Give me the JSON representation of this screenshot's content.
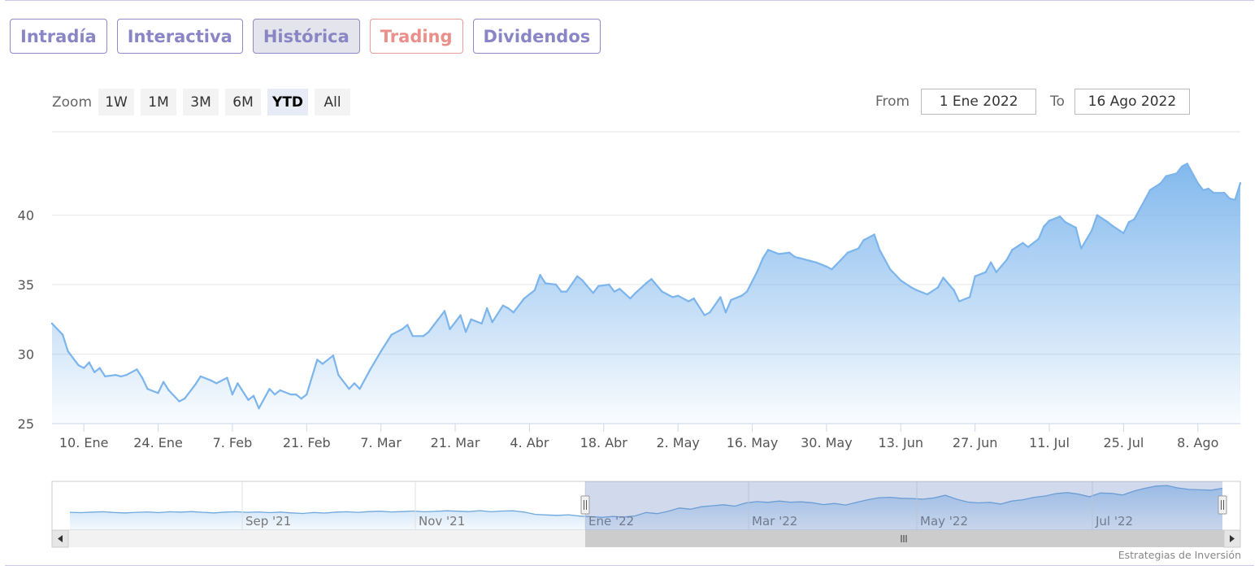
{
  "tabs": [
    {
      "label": "Intradía"
    },
    {
      "label": "Interactiva"
    },
    {
      "label": "Histórica"
    },
    {
      "label": "Trading"
    },
    {
      "label": "Dividendos"
    }
  ],
  "zoom": {
    "label": "Zoom",
    "buttons": [
      "1W",
      "1M",
      "3M",
      "6M",
      "YTD",
      "All"
    ],
    "selected": "YTD"
  },
  "range": {
    "from_label": "From",
    "from_value": "1 Ene 2022",
    "to_label": "To",
    "to_value": "16 Ago 2022"
  },
  "credit": "Estrategias de Inversión",
  "colors": {
    "line": "#7cb5ec",
    "accent": "#8a85c4",
    "trading": "#ea8f8a"
  },
  "chart_data": {
    "type": "area",
    "ylim": [
      25,
      46
    ],
    "yticks": [
      25,
      30,
      35,
      40
    ],
    "xlim": [
      "2022-01-04",
      "2022-08-16"
    ],
    "xticks": [
      {
        "date": "2022-01-10",
        "label": "10. Ene"
      },
      {
        "date": "2022-01-24",
        "label": "24. Ene"
      },
      {
        "date": "2022-02-07",
        "label": "7. Feb"
      },
      {
        "date": "2022-02-21",
        "label": "21. Feb"
      },
      {
        "date": "2022-03-07",
        "label": "7. Mar"
      },
      {
        "date": "2022-03-21",
        "label": "21. Mar"
      },
      {
        "date": "2022-04-04",
        "label": "4. Abr"
      },
      {
        "date": "2022-04-18",
        "label": "18. Abr"
      },
      {
        "date": "2022-05-02",
        "label": "2. May"
      },
      {
        "date": "2022-05-16",
        "label": "16. May"
      },
      {
        "date": "2022-05-30",
        "label": "30. May"
      },
      {
        "date": "2022-06-13",
        "label": "13. Jun"
      },
      {
        "date": "2022-06-27",
        "label": "27. Jun"
      },
      {
        "date": "2022-07-11",
        "label": "11. Jul"
      },
      {
        "date": "2022-07-25",
        "label": "25. Jul"
      },
      {
        "date": "2022-08-08",
        "label": "8. Ago"
      }
    ],
    "series": [
      {
        "values": [
          [
            "2022-01-04",
            32.2
          ],
          [
            "2022-01-06",
            31.4
          ],
          [
            "2022-01-07",
            30.2
          ],
          [
            "2022-01-09",
            29.2
          ],
          [
            "2022-01-10",
            29.0
          ],
          [
            "2022-01-11",
            29.4
          ],
          [
            "2022-01-12",
            28.7
          ],
          [
            "2022-01-13",
            29.0
          ],
          [
            "2022-01-14",
            28.4
          ],
          [
            "2022-01-16",
            28.5
          ],
          [
            "2022-01-17",
            28.4
          ],
          [
            "2022-01-18",
            28.5
          ],
          [
            "2022-01-20",
            28.9
          ],
          [
            "2022-01-21",
            28.3
          ],
          [
            "2022-01-22",
            27.5
          ],
          [
            "2022-01-24",
            27.2
          ],
          [
            "2022-01-25",
            28.0
          ],
          [
            "2022-01-26",
            27.4
          ],
          [
            "2022-01-28",
            26.6
          ],
          [
            "2022-01-29",
            26.8
          ],
          [
            "2022-01-31",
            27.8
          ],
          [
            "2022-02-01",
            28.4
          ],
          [
            "2022-02-03",
            28.1
          ],
          [
            "2022-02-04",
            27.9
          ],
          [
            "2022-02-06",
            28.3
          ],
          [
            "2022-02-07",
            27.1
          ],
          [
            "2022-02-08",
            27.9
          ],
          [
            "2022-02-10",
            26.7
          ],
          [
            "2022-02-11",
            27.0
          ],
          [
            "2022-02-12",
            26.1
          ],
          [
            "2022-02-14",
            27.5
          ],
          [
            "2022-02-15",
            27.1
          ],
          [
            "2022-02-16",
            27.4
          ],
          [
            "2022-02-18",
            27.1
          ],
          [
            "2022-02-19",
            27.1
          ],
          [
            "2022-02-20",
            26.8
          ],
          [
            "2022-02-21",
            27.1
          ],
          [
            "2022-02-23",
            29.6
          ],
          [
            "2022-02-24",
            29.3
          ],
          [
            "2022-02-26",
            29.9
          ],
          [
            "2022-02-27",
            28.5
          ],
          [
            "2022-03-01",
            27.5
          ],
          [
            "2022-03-02",
            27.9
          ],
          [
            "2022-03-03",
            27.5
          ],
          [
            "2022-03-05",
            28.9
          ],
          [
            "2022-03-07",
            30.2
          ],
          [
            "2022-03-09",
            31.4
          ],
          [
            "2022-03-11",
            31.8
          ],
          [
            "2022-03-12",
            32.1
          ],
          [
            "2022-03-13",
            31.3
          ],
          [
            "2022-03-15",
            31.3
          ],
          [
            "2022-03-16",
            31.6
          ],
          [
            "2022-03-17",
            32.1
          ],
          [
            "2022-03-19",
            33.1
          ],
          [
            "2022-03-20",
            31.8
          ],
          [
            "2022-03-22",
            32.8
          ],
          [
            "2022-03-23",
            31.6
          ],
          [
            "2022-03-24",
            32.5
          ],
          [
            "2022-03-26",
            32.2
          ],
          [
            "2022-03-27",
            33.3
          ],
          [
            "2022-03-28",
            32.3
          ],
          [
            "2022-03-30",
            33.5
          ],
          [
            "2022-03-31",
            33.3
          ],
          [
            "2022-04-01",
            33.0
          ],
          [
            "2022-04-03",
            34.0
          ],
          [
            "2022-04-05",
            34.6
          ],
          [
            "2022-04-06",
            35.7
          ],
          [
            "2022-04-07",
            35.1
          ],
          [
            "2022-04-09",
            35.0
          ],
          [
            "2022-04-10",
            34.5
          ],
          [
            "2022-04-11",
            34.5
          ],
          [
            "2022-04-13",
            35.6
          ],
          [
            "2022-04-14",
            35.3
          ],
          [
            "2022-04-16",
            34.4
          ],
          [
            "2022-04-17",
            34.9
          ],
          [
            "2022-04-19",
            35.0
          ],
          [
            "2022-04-20",
            34.5
          ],
          [
            "2022-04-21",
            34.7
          ],
          [
            "2022-04-23",
            34.0
          ],
          [
            "2022-04-24",
            34.4
          ],
          [
            "2022-04-26",
            35.1
          ],
          [
            "2022-04-27",
            35.4
          ],
          [
            "2022-04-29",
            34.5
          ],
          [
            "2022-05-01",
            34.1
          ],
          [
            "2022-05-02",
            34.2
          ],
          [
            "2022-05-04",
            33.8
          ],
          [
            "2022-05-05",
            34.0
          ],
          [
            "2022-05-07",
            32.8
          ],
          [
            "2022-05-08",
            33.0
          ],
          [
            "2022-05-10",
            34.1
          ],
          [
            "2022-05-11",
            33.0
          ],
          [
            "2022-05-12",
            33.9
          ],
          [
            "2022-05-14",
            34.2
          ],
          [
            "2022-05-15",
            34.5
          ],
          [
            "2022-05-17",
            36.0
          ],
          [
            "2022-05-18",
            36.9
          ],
          [
            "2022-05-19",
            37.5
          ],
          [
            "2022-05-21",
            37.2
          ],
          [
            "2022-05-23",
            37.3
          ],
          [
            "2022-05-24",
            37.0
          ],
          [
            "2022-05-25",
            36.9
          ],
          [
            "2022-05-27",
            36.7
          ],
          [
            "2022-05-28",
            36.6
          ],
          [
            "2022-05-30",
            36.3
          ],
          [
            "2022-05-31",
            36.1
          ],
          [
            "2022-06-02",
            36.9
          ],
          [
            "2022-06-03",
            37.3
          ],
          [
            "2022-06-05",
            37.6
          ],
          [
            "2022-06-06",
            38.2
          ],
          [
            "2022-06-08",
            38.6
          ],
          [
            "2022-06-09",
            37.5
          ],
          [
            "2022-06-11",
            36.1
          ],
          [
            "2022-06-13",
            35.3
          ],
          [
            "2022-06-15",
            34.8
          ],
          [
            "2022-06-16",
            34.6
          ],
          [
            "2022-06-18",
            34.3
          ],
          [
            "2022-06-20",
            34.8
          ],
          [
            "2022-06-21",
            35.5
          ],
          [
            "2022-06-23",
            34.6
          ],
          [
            "2022-06-24",
            33.8
          ],
          [
            "2022-06-26",
            34.1
          ],
          [
            "2022-06-27",
            35.6
          ],
          [
            "2022-06-29",
            35.9
          ],
          [
            "2022-06-30",
            36.6
          ],
          [
            "2022-07-01",
            35.9
          ],
          [
            "2022-07-03",
            36.8
          ],
          [
            "2022-07-04",
            37.5
          ],
          [
            "2022-07-06",
            38.0
          ],
          [
            "2022-07-07",
            37.7
          ],
          [
            "2022-07-09",
            38.3
          ],
          [
            "2022-07-10",
            39.2
          ],
          [
            "2022-07-11",
            39.6
          ],
          [
            "2022-07-13",
            39.9
          ],
          [
            "2022-07-14",
            39.5
          ],
          [
            "2022-07-16",
            39.1
          ],
          [
            "2022-07-17",
            37.6
          ],
          [
            "2022-07-19",
            38.9
          ],
          [
            "2022-07-20",
            40.0
          ],
          [
            "2022-07-22",
            39.5
          ],
          [
            "2022-07-23",
            39.2
          ],
          [
            "2022-07-25",
            38.7
          ],
          [
            "2022-07-26",
            39.5
          ],
          [
            "2022-07-27",
            39.7
          ],
          [
            "2022-07-29",
            41.1
          ],
          [
            "2022-07-30",
            41.8
          ],
          [
            "2022-08-01",
            42.3
          ],
          [
            "2022-08-02",
            42.8
          ],
          [
            "2022-08-04",
            43.0
          ],
          [
            "2022-08-05",
            43.5
          ],
          [
            "2022-08-06",
            43.7
          ],
          [
            "2022-08-08",
            42.3
          ],
          [
            "2022-08-09",
            41.8
          ],
          [
            "2022-08-10",
            41.9
          ],
          [
            "2022-08-11",
            41.6
          ],
          [
            "2022-08-13",
            41.6
          ],
          [
            "2022-08-14",
            41.2
          ],
          [
            "2022-08-15",
            41.1
          ],
          [
            "2022-08-16",
            42.3
          ]
        ]
      }
    ],
    "navigator": {
      "labels": [
        "Sep '21",
        "Nov '21",
        "Ene '22",
        "Mar '22",
        "May '22",
        "Jul '22"
      ],
      "values": [
        29.5,
        29.3,
        29.6,
        29.8,
        29.4,
        29.2,
        29.5,
        29.7,
        29.3,
        29.8,
        29.6,
        29.9,
        29.5,
        29.2,
        29.6,
        29.8,
        29.5,
        29.7,
        29.3,
        29.6,
        29.2,
        28.9,
        29.4,
        29.1,
        29.6,
        29.8,
        29.5,
        29.9,
        30.1,
        29.7,
        29.9,
        30.2,
        29.8,
        30.0,
        30.3,
        30.1,
        29.9,
        30.4,
        29.8,
        30.2,
        30.3,
        29.6,
        28.4,
        28.1,
        27.9,
        28.2,
        27.5,
        27.2,
        26.8,
        27.3,
        27.0,
        27.6,
        29.4,
        28.8,
        30.1,
        31.8,
        31.2,
        32.5,
        33.0,
        33.5,
        32.8,
        34.5,
        35.2,
        34.8,
        35.5,
        34.9,
        35.1,
        34.6,
        33.6,
        34.2,
        33.4,
        34.8,
        36.2,
        37.3,
        37.5,
        37.0,
        36.8,
        36.5,
        37.2,
        38.6,
        36.5,
        35.0,
        34.5,
        34.8,
        33.9,
        35.5,
        36.2,
        37.5,
        38.2,
        39.5,
        40.0,
        39.2,
        37.8,
        39.8,
        39.6,
        38.7,
        40.8,
        42.3,
        43.5,
        43.8,
        42.5,
        41.7,
        41.5,
        41.3,
        42.3
      ]
    }
  }
}
